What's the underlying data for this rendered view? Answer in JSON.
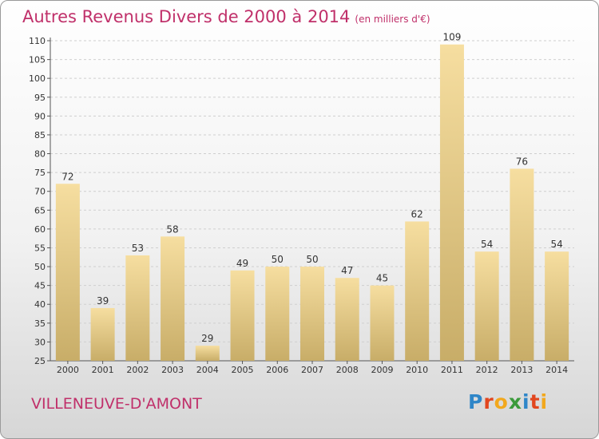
{
  "header": {
    "title": "Autres Revenus Divers de 2000 à 2014",
    "subtitle": "(en milliers d'€)"
  },
  "footer": {
    "town": "VILLENEUVE-D'AMONT",
    "logo_letters": [
      {
        "char": "P",
        "color": "#2f86c8"
      },
      {
        "char": "r",
        "color": "#e2461e"
      },
      {
        "char": "o",
        "color": "#f2a81d"
      },
      {
        "char": "x",
        "color": "#3a9a3a"
      },
      {
        "char": "i",
        "color": "#2f86c8"
      },
      {
        "char": "t",
        "color": "#e2461e"
      },
      {
        "char": "i",
        "color": "#f2a81d"
      }
    ]
  },
  "chart_data": {
    "type": "bar",
    "title": "Autres Revenus Divers de 2000 à 2014",
    "subtitle": "(en milliers d'€)",
    "categories": [
      "2000",
      "2001",
      "2002",
      "2003",
      "2004",
      "2005",
      "2006",
      "2007",
      "2008",
      "2009",
      "2010",
      "2011",
      "2012",
      "2013",
      "2014"
    ],
    "values": [
      72,
      39,
      53,
      58,
      29,
      49,
      50,
      50,
      47,
      45,
      62,
      109,
      54,
      76,
      54
    ],
    "ylim": [
      25,
      110
    ],
    "yticks": [
      25,
      30,
      35,
      40,
      45,
      50,
      55,
      60,
      65,
      70,
      75,
      80,
      85,
      90,
      95,
      100,
      105,
      110
    ],
    "grid": true,
    "colors": {
      "bar_light": "#f6dea0",
      "bar_dark": "#c8ad68",
      "grid": "#cfcfcf",
      "text": "#333333",
      "accent": "#c0306a"
    }
  }
}
